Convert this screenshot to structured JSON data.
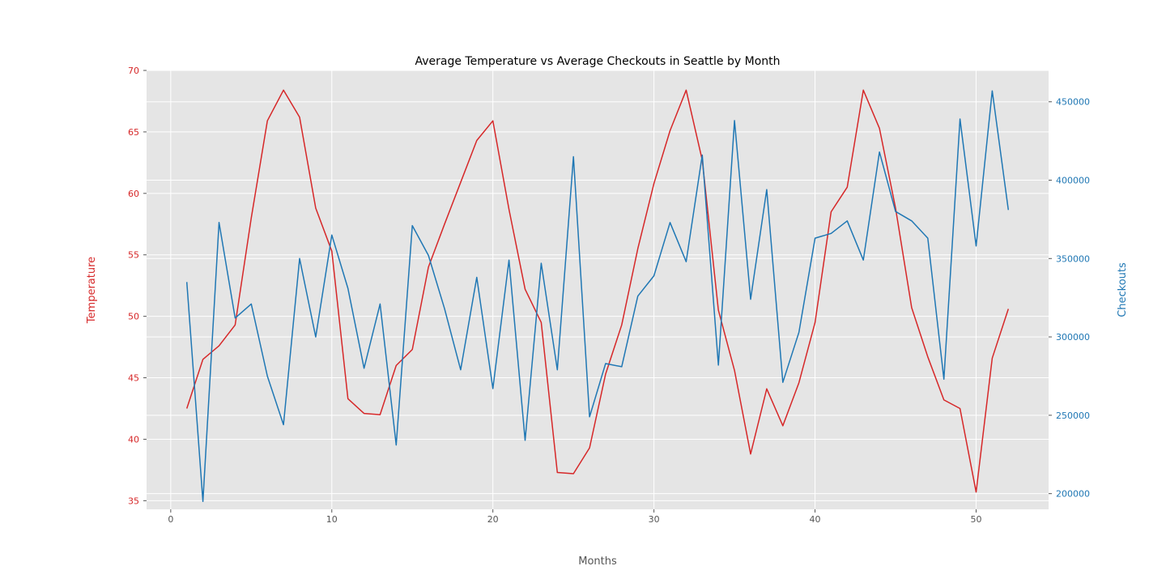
{
  "chart_data": {
    "type": "line",
    "title": "Average Temperature vs Average Checkouts in Seattle by Month",
    "xlabel": "Months",
    "ylabel_left": "Temperature",
    "ylabel_right": "Checkouts",
    "xlim": [
      -1.5,
      54.5
    ],
    "ylim_left": [
      34.3,
      70.0
    ],
    "ylim_right": [
      190000,
      470000
    ],
    "x_ticks": [
      0,
      10,
      20,
      30,
      40,
      50
    ],
    "y_ticks_left": [
      35,
      40,
      45,
      50,
      55,
      60,
      65,
      70
    ],
    "y_ticks_right": [
      200000,
      250000,
      300000,
      350000,
      400000,
      450000
    ],
    "grid": true,
    "x": [
      1,
      2,
      3,
      4,
      5,
      6,
      7,
      8,
      9,
      10,
      11,
      12,
      13,
      14,
      15,
      16,
      17,
      18,
      19,
      20,
      21,
      22,
      23,
      24,
      25,
      26,
      27,
      28,
      29,
      30,
      31,
      32,
      33,
      34,
      35,
      36,
      37,
      38,
      39,
      40,
      41,
      42,
      43,
      44,
      45,
      46,
      47,
      48,
      49,
      50,
      51,
      52
    ],
    "series": [
      {
        "axis": "left",
        "color": "#d62728",
        "values": [
          42.5,
          46.5,
          47.6,
          49.3,
          58.0,
          65.9,
          68.4,
          66.2,
          58.8,
          55.3,
          43.3,
          42.1,
          42.0,
          46.0,
          47.3,
          54.0,
          57.5,
          60.9,
          64.3,
          65.9,
          58.7,
          52.2,
          49.5,
          37.3,
          37.2,
          39.3,
          45.3,
          49.3,
          55.5,
          60.8,
          65.1,
          68.4,
          62.7,
          50.5,
          45.6,
          38.8,
          44.1,
          41.1,
          44.6,
          49.5,
          58.5,
          60.5,
          68.4,
          65.3,
          58.8,
          50.7,
          46.7,
          43.2,
          42.5,
          35.7,
          46.6,
          50.6
        ]
      },
      {
        "axis": "right",
        "color": "#1f77b4",
        "values": [
          335000,
          195000,
          373000,
          312000,
          321000,
          275000,
          244000,
          350000,
          300000,
          365000,
          331000,
          280000,
          321000,
          231000,
          371000,
          352000,
          318000,
          279000,
          338000,
          267000,
          349000,
          234000,
          347000,
          279000,
          415000,
          249000,
          283000,
          281000,
          326000,
          339000,
          373000,
          348000,
          416000,
          282000,
          438000,
          324000,
          394000,
          271000,
          303000,
          363000,
          366000,
          374000,
          349000,
          418000,
          380000,
          374000,
          363000,
          273000,
          439000,
          358000,
          457000,
          381000
        ]
      }
    ]
  }
}
